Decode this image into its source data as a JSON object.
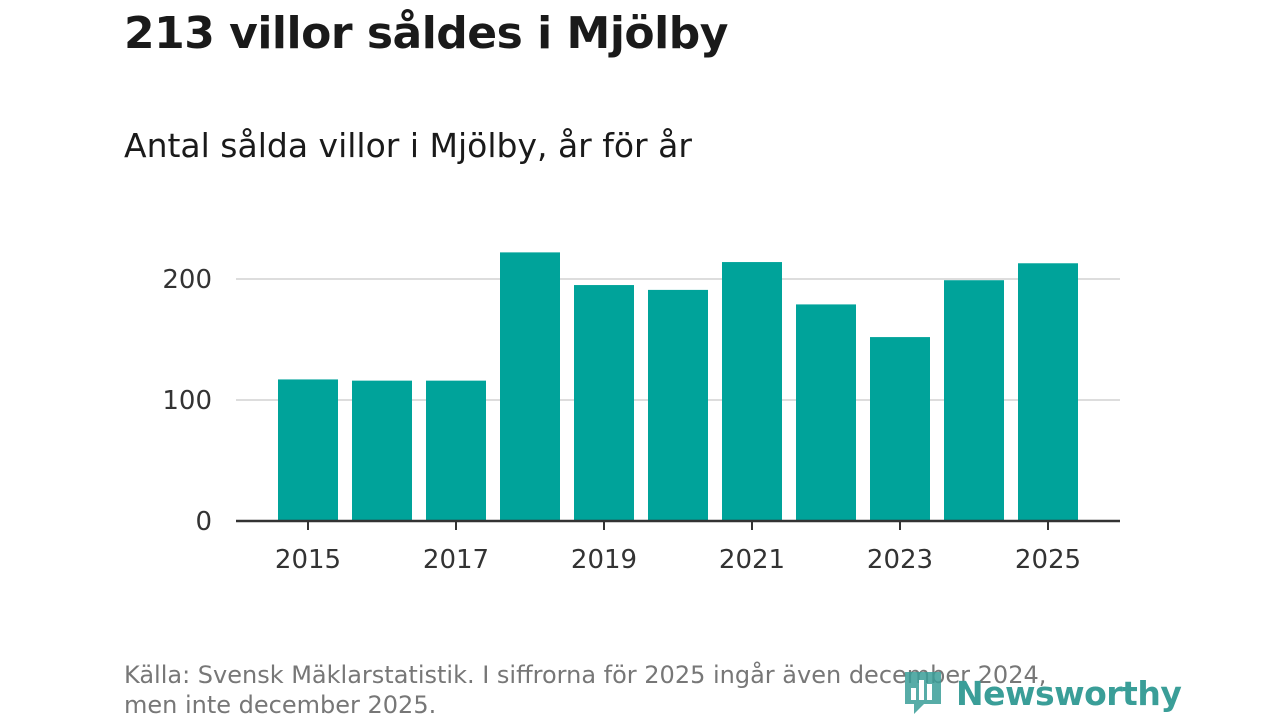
{
  "header": {
    "title": "213 villor såldes i Mjölby",
    "subtitle": "Antal sålda villor i Mjölby, år för år"
  },
  "footer": {
    "source_line1": "Källa: Svensk Mäklarstatistik. I siffrorna för 2025 ingår även december 2024,",
    "source_line2": "men inte december 2025.",
    "logo_text": "Newsworthy"
  },
  "colors": {
    "bar": "#00a39a",
    "grid": "#dddddd",
    "axis": "#333333",
    "logo": "#3a9e98"
  },
  "chart_data": {
    "type": "bar",
    "title": "Antal sålda villor i Mjölby, år för år",
    "xlabel": "",
    "ylabel": "",
    "categories": [
      "2015",
      "2016",
      "2017",
      "2018",
      "2019",
      "2020",
      "2021",
      "2022",
      "2023",
      "2024",
      "2025"
    ],
    "values": [
      117,
      116,
      116,
      222,
      195,
      191,
      214,
      179,
      152,
      199,
      213
    ],
    "ylim": [
      0,
      230
    ],
    "yticks": [
      0,
      100,
      200
    ],
    "xtick_labels": [
      "2015",
      "2017",
      "2019",
      "2021",
      "2023",
      "2025"
    ],
    "grid": true,
    "legend": "none"
  }
}
